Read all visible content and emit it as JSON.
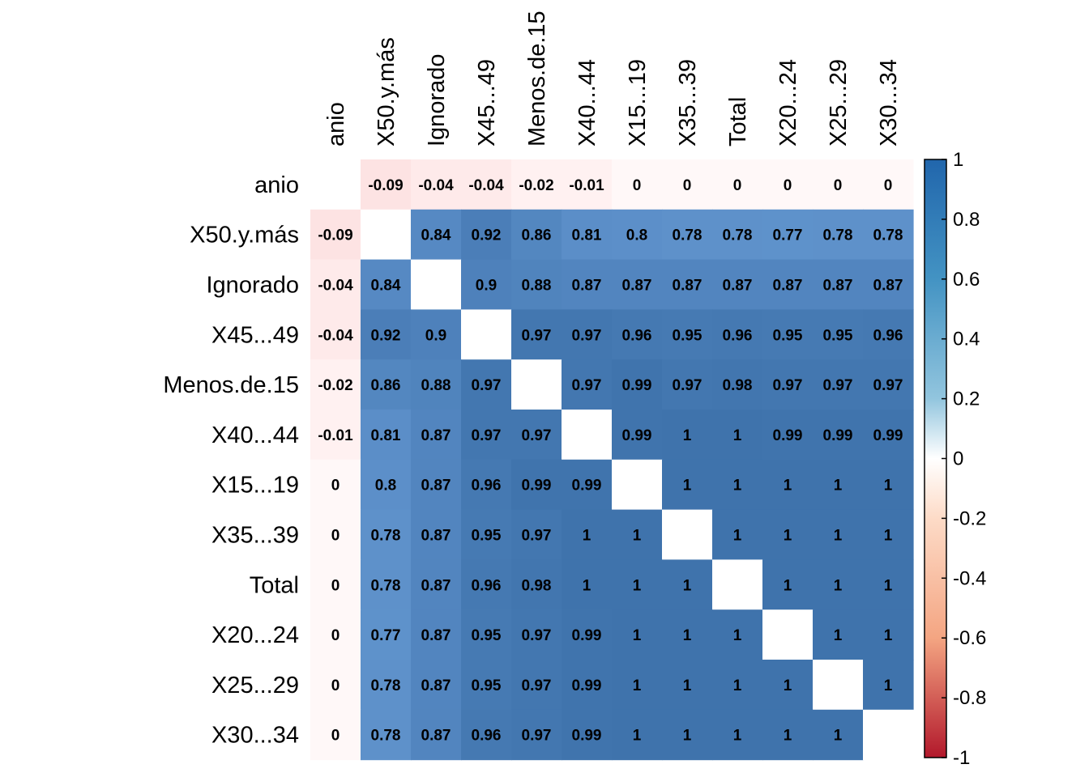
{
  "colors": {
    "negative": "#B2182B",
    "neutral": "#FFFFFF",
    "positive": "#2166AC",
    "low_positive": "#67A9CF",
    "low_negative": "#EF8A62"
  },
  "chart_data": {
    "type": "heatmap",
    "title": "",
    "variables": [
      "anio",
      "X50.y.más",
      "Ignorado",
      "X45...49",
      "Menos.de.15",
      "X40...44",
      "X15...19",
      "X35...39",
      "Total",
      "X20...24",
      "X25...29",
      "X30...34"
    ],
    "matrix": [
      [
        null,
        -0.09,
        -0.04,
        -0.04,
        -0.02,
        -0.01,
        0,
        0,
        0,
        0,
        0,
        0
      ],
      [
        -0.09,
        null,
        0.84,
        0.92,
        0.86,
        0.81,
        0.8,
        0.78,
        0.78,
        0.77,
        0.78,
        0.78
      ],
      [
        -0.04,
        0.84,
        null,
        0.9,
        0.88,
        0.87,
        0.87,
        0.87,
        0.87,
        0.87,
        0.87,
        0.87
      ],
      [
        -0.04,
        0.92,
        0.9,
        null,
        0.97,
        0.97,
        0.96,
        0.95,
        0.96,
        0.95,
        0.95,
        0.96
      ],
      [
        -0.02,
        0.86,
        0.88,
        0.97,
        null,
        0.97,
        0.99,
        0.97,
        0.98,
        0.97,
        0.97,
        0.97
      ],
      [
        -0.01,
        0.81,
        0.87,
        0.97,
        0.97,
        null,
        0.99,
        1,
        1,
        0.99,
        0.99,
        0.99
      ],
      [
        0,
        0.8,
        0.87,
        0.96,
        0.99,
        0.99,
        null,
        1,
        1,
        1,
        1,
        1
      ],
      [
        0,
        0.78,
        0.87,
        0.95,
        0.97,
        1,
        1,
        null,
        1,
        1,
        1,
        1
      ],
      [
        0,
        0.78,
        0.87,
        0.96,
        0.98,
        1,
        1,
        1,
        null,
        1,
        1,
        1
      ],
      [
        0,
        0.77,
        0.87,
        0.95,
        0.97,
        0.99,
        1,
        1,
        1,
        null,
        1,
        1
      ],
      [
        0,
        0.78,
        0.87,
        0.95,
        0.97,
        0.99,
        1,
        1,
        1,
        1,
        null,
        1
      ],
      [
        0,
        0.78,
        0.87,
        0.96,
        0.97,
        0.99,
        1,
        1,
        1,
        1,
        1,
        null
      ]
    ],
    "colorbar": {
      "range": [
        -1,
        1
      ],
      "ticks": [
        "1",
        "0.8",
        "0.6",
        "0.4",
        "0.2",
        "0",
        "-0.2",
        "-0.4",
        "-0.6",
        "-0.8",
        "-1"
      ],
      "tick_values": [
        1,
        0.8,
        0.6,
        0.4,
        0.2,
        0,
        -0.2,
        -0.4,
        -0.6,
        -0.8,
        -1
      ]
    },
    "diagonal_blank": true,
    "grid": false
  }
}
